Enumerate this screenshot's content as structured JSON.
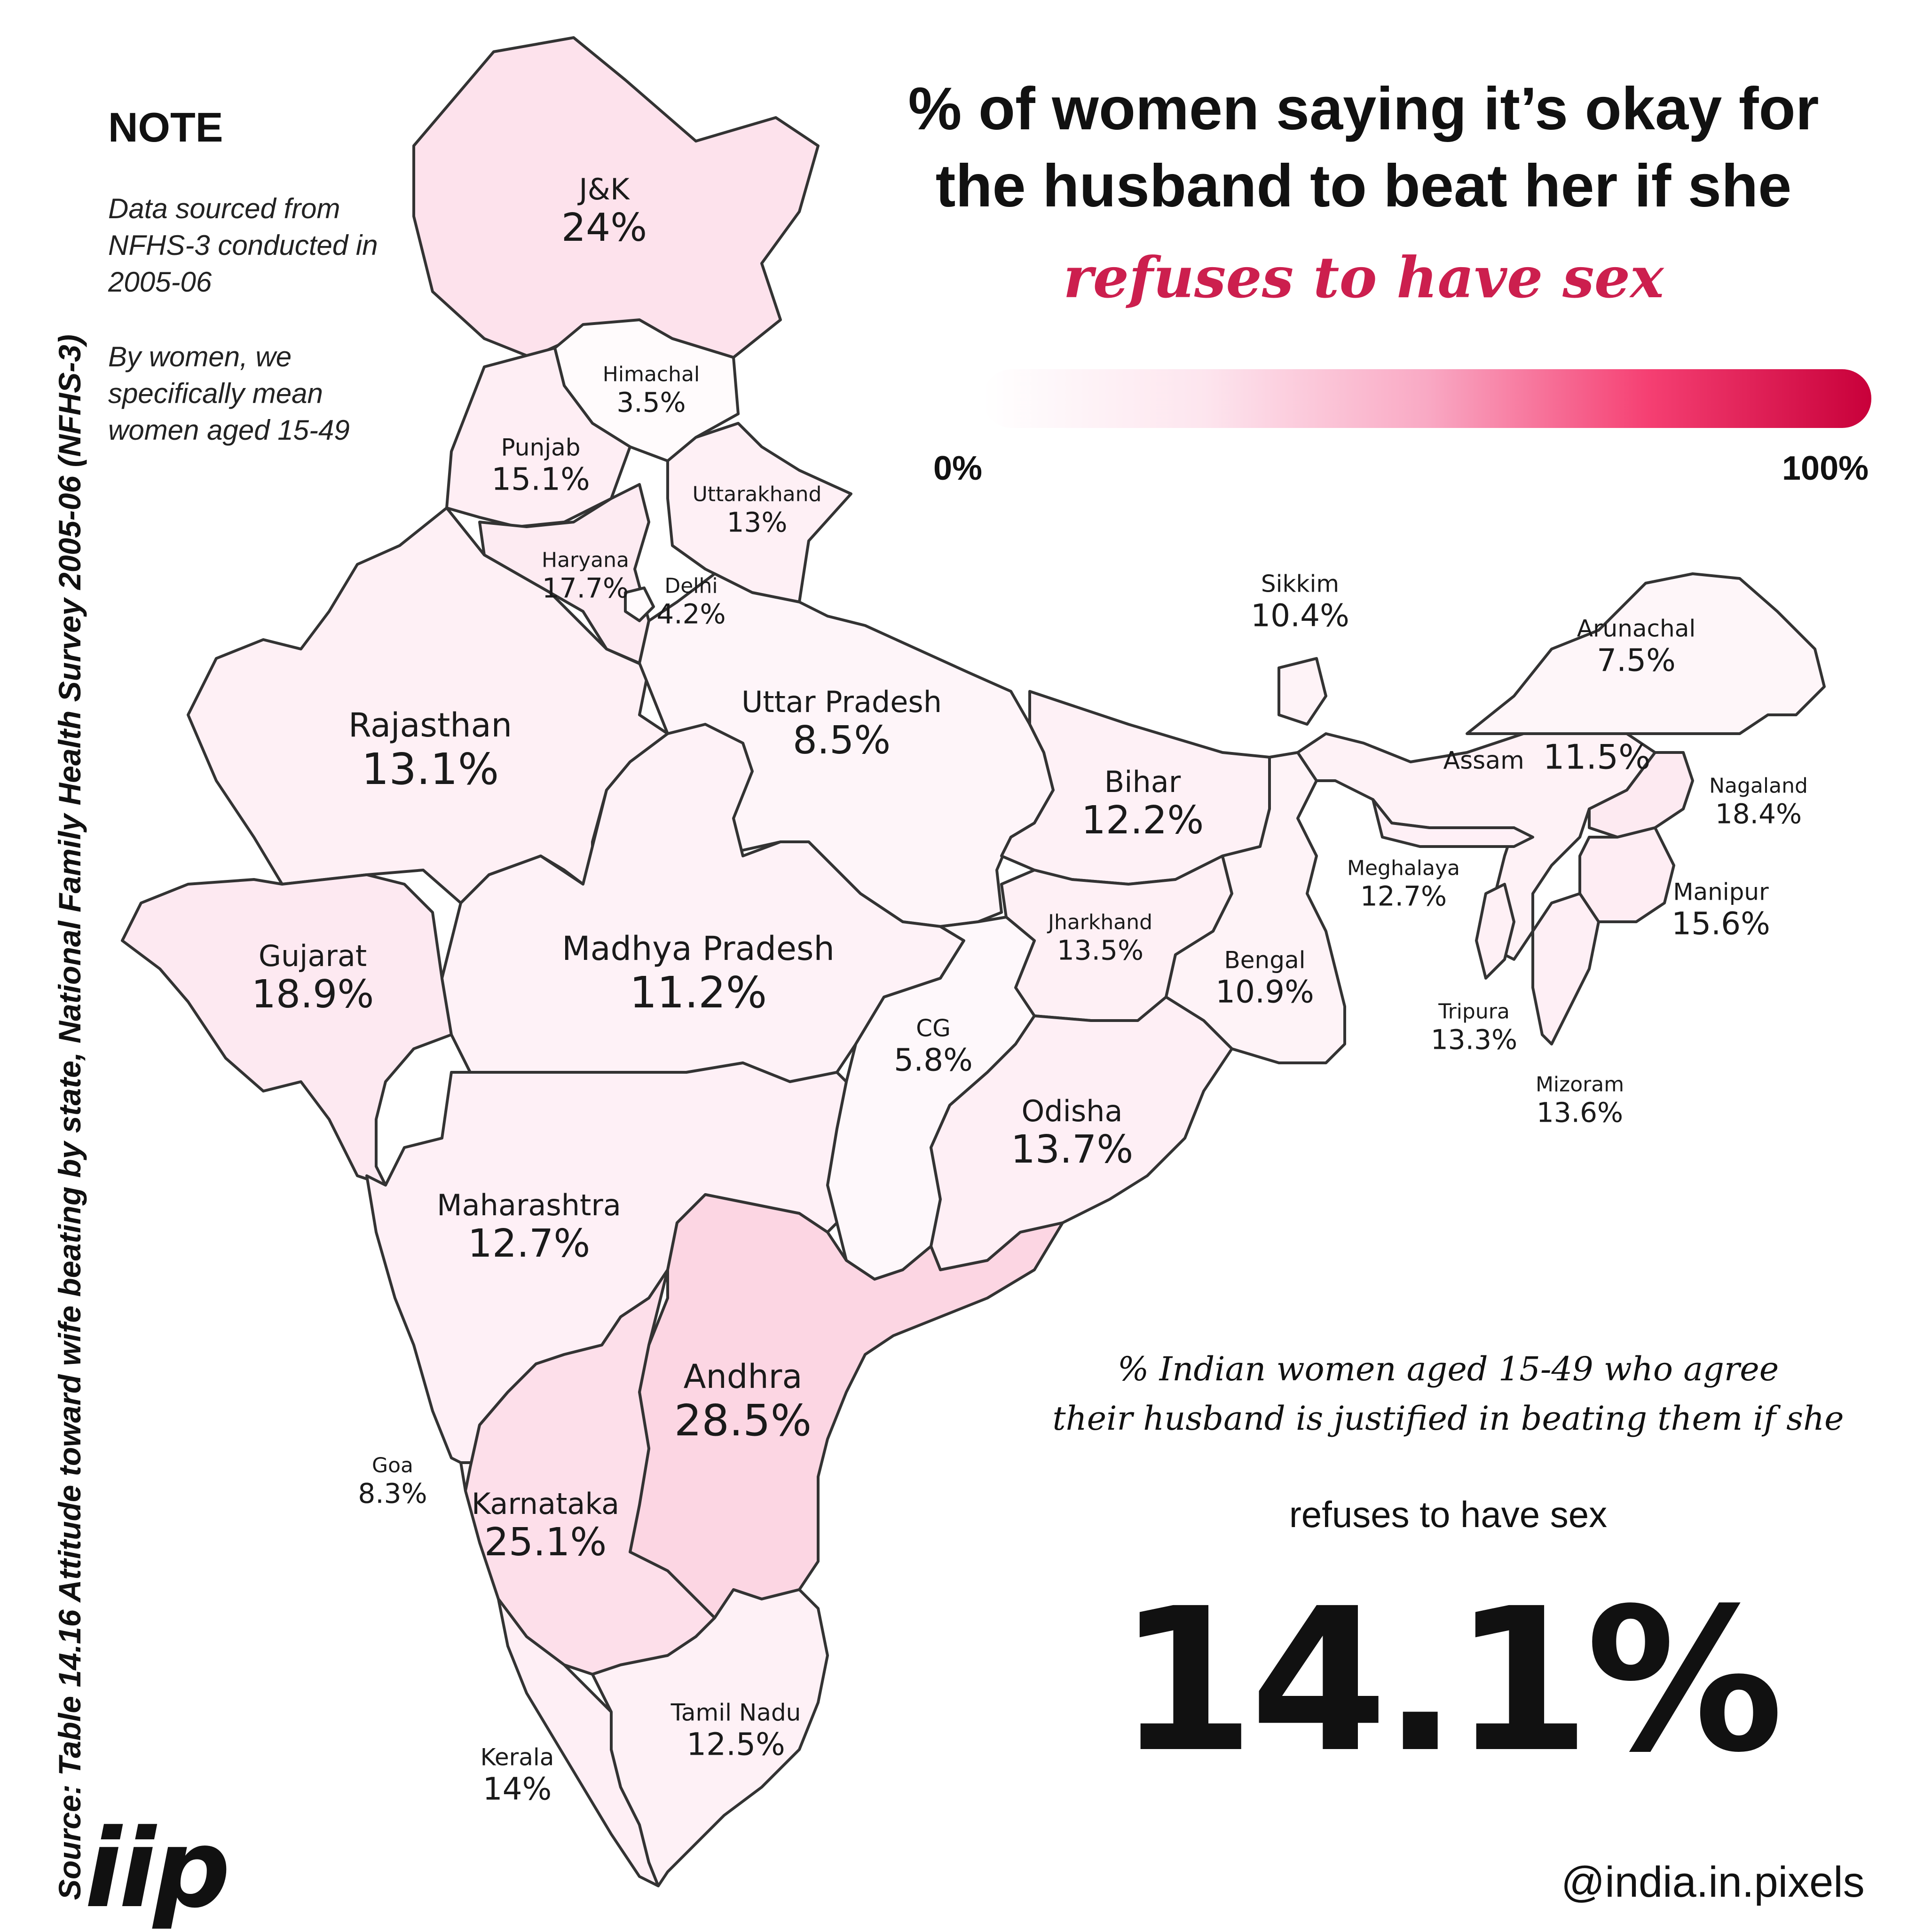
{
  "title": {
    "line1": "% of women saying it’s okay for",
    "line2": "the husband to beat her if she",
    "accent": "refuses to have sex"
  },
  "scale": {
    "min_label": "0%",
    "max_label": "100%",
    "colors": [
      "#ffffff",
      "#fde5ee",
      "#f9a9c4",
      "#f53f72",
      "#c8003a"
    ]
  },
  "note": {
    "heading": "NOTE",
    "para1": [
      "Data sourced from",
      "NFHS-3 conducted in",
      "2005-06"
    ],
    "para2": [
      "By women, we",
      "specifically mean",
      "women aged 15-49"
    ]
  },
  "source": "Source:  Table 14.16 Attitude toward wife beating by state, National Family Health Survey 2005-06 (NFHS-3)",
  "summary": {
    "line1": "% Indian women aged 15-49 who agree",
    "line2": "their husband is justified in beating them if she",
    "line3": "refuses to have sex",
    "value": "14.1%"
  },
  "brand": {
    "logo": "iip",
    "handle": "@india.in.pixels"
  },
  "styles": {
    "border_color": "#333333",
    "accent_color": "#cc1f4e"
  },
  "states": [
    {
      "id": "jk",
      "name": "J&K",
      "value": "24%",
      "pct": 24
    },
    {
      "id": "himachal",
      "name": "Himachal",
      "value": "3.5%",
      "pct": 3.5
    },
    {
      "id": "punjab",
      "name": "Punjab",
      "value": "15.1%",
      "pct": 15.1
    },
    {
      "id": "uttarakhand",
      "name": "Uttarakhand",
      "value": "13%",
      "pct": 13
    },
    {
      "id": "haryana",
      "name": "Haryana",
      "value": "17.7%",
      "pct": 17.7
    },
    {
      "id": "delhi",
      "name": "Delhi",
      "value": "4.2%",
      "pct": 4.2
    },
    {
      "id": "rajasthan",
      "name": "Rajasthan",
      "value": "13.1%",
      "pct": 13.1
    },
    {
      "id": "up",
      "name": "Uttar Pradesh",
      "value": "8.5%",
      "pct": 8.5
    },
    {
      "id": "gujarat",
      "name": "Gujarat",
      "value": "18.9%",
      "pct": 18.9
    },
    {
      "id": "mp",
      "name": "Madhya Pradesh",
      "value": "11.2%",
      "pct": 11.2
    },
    {
      "id": "bihar",
      "name": "Bihar",
      "value": "12.2%",
      "pct": 12.2
    },
    {
      "id": "jharkhand",
      "name": "Jharkhand",
      "value": "13.5%",
      "pct": 13.5
    },
    {
      "id": "bengal",
      "name": "Bengal",
      "value": "10.9%",
      "pct": 10.9
    },
    {
      "id": "cg",
      "name": "CG",
      "value": "5.8%",
      "pct": 5.8
    },
    {
      "id": "odisha",
      "name": "Odisha",
      "value": "13.7%",
      "pct": 13.7
    },
    {
      "id": "maharashtra",
      "name": "Maharashtra",
      "value": "12.7%",
      "pct": 12.7
    },
    {
      "id": "andhra",
      "name": "Andhra",
      "value": "28.5%",
      "pct": 28.5
    },
    {
      "id": "goa",
      "name": "Goa",
      "value": "8.3%",
      "pct": 8.3
    },
    {
      "id": "karnataka",
      "name": "Karnataka",
      "value": "25.1%",
      "pct": 25.1
    },
    {
      "id": "kerala",
      "name": "Kerala",
      "value": "14%",
      "pct": 14
    },
    {
      "id": "tn",
      "name": "Tamil Nadu",
      "value": "12.5%",
      "pct": 12.5
    },
    {
      "id": "sikkim",
      "name": "Sikkim",
      "value": "10.4%",
      "pct": 10.4
    },
    {
      "id": "arunachal",
      "name": "Arunachal",
      "value": "7.5%",
      "pct": 7.5
    },
    {
      "id": "assam",
      "name": "Assam",
      "value": "11.5%",
      "pct": 11.5
    },
    {
      "id": "nagaland",
      "name": "Nagaland",
      "value": "18.4%",
      "pct": 18.4
    },
    {
      "id": "meghalaya",
      "name": "Meghalaya",
      "value": "12.7%",
      "pct": 12.7
    },
    {
      "id": "manipur",
      "name": "Manipur",
      "value": "15.6%",
      "pct": 15.6
    },
    {
      "id": "tripura",
      "name": "Tripura",
      "value": "13.3%",
      "pct": 13.3
    },
    {
      "id": "mizoram",
      "name": "Mizoram",
      "value": "13.6%",
      "pct": 13.6
    }
  ]
}
